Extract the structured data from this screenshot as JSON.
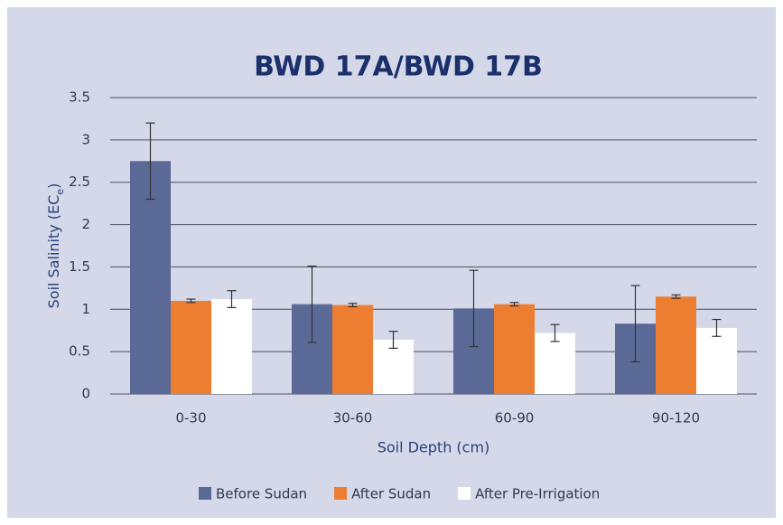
{
  "chart_data": {
    "type": "bar",
    "title": "BWD 17A/BWD 17B",
    "x_label": "Soil Depth (cm)",
    "y_label_parts": [
      "Soil Salinity (EC",
      "e",
      ")"
    ],
    "categories": [
      "0-30",
      "30-60",
      "60-90",
      "90-120"
    ],
    "series": [
      {
        "name": "Before Sudan",
        "color": "#5a6996",
        "values": [
          2.75,
          1.06,
          1.01,
          0.83
        ],
        "errors": [
          0.45,
          0.45,
          0.45,
          0.45
        ]
      },
      {
        "name": "After Sudan",
        "color": "#ed7d31",
        "values": [
          1.1,
          1.05,
          1.06,
          1.15
        ],
        "errors": [
          0.02,
          0.02,
          0.02,
          0.02
        ]
      },
      {
        "name": "After Pre-Irrigation",
        "color": "#ffffff",
        "values": [
          1.12,
          0.64,
          0.72,
          0.78
        ],
        "errors": [
          0.1,
          0.1,
          0.1,
          0.1
        ]
      }
    ],
    "ylim": [
      0,
      3.5
    ],
    "yticks": [
      0,
      0.5,
      1,
      1.5,
      2,
      2.5,
      3,
      3.5
    ],
    "grid": true,
    "legend": "bottom"
  }
}
